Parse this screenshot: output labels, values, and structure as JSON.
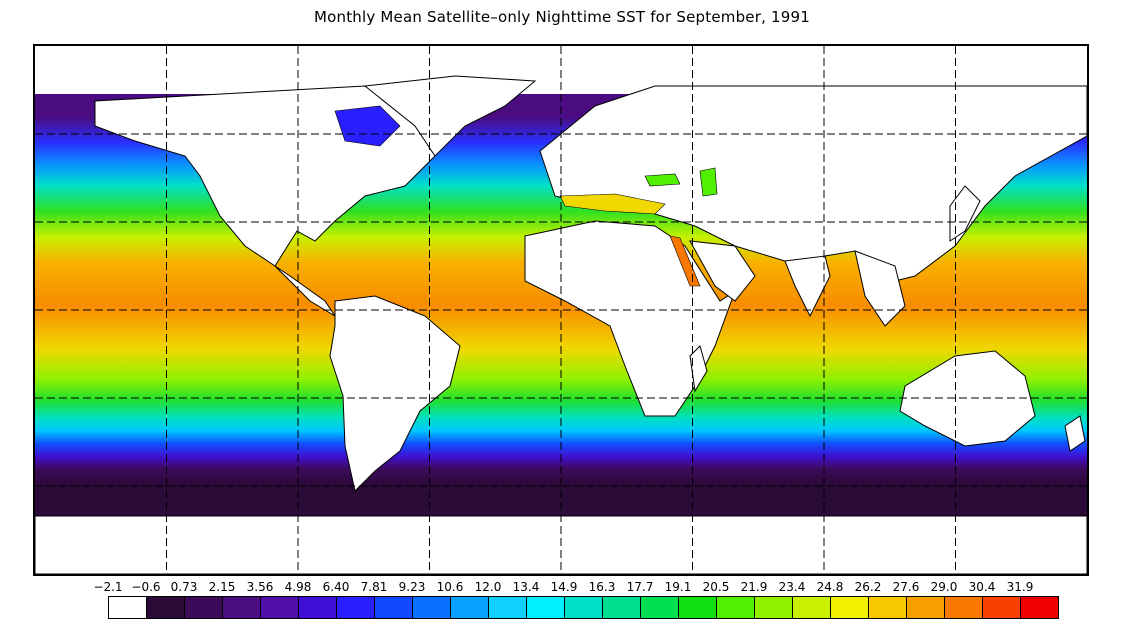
{
  "title": "Monthly Mean Satellite–only Nighttime SST for September, 1991",
  "colorbar": {
    "labels": [
      "−2.1",
      "−0.6",
      "0.73",
      "2.15",
      "3.56",
      "4.98",
      "6.40",
      "7.81",
      "9.23",
      "10.6",
      "12.0",
      "13.4",
      "14.9",
      "16.3",
      "17.7",
      "19.1",
      "20.5",
      "21.9",
      "23.4",
      "24.8",
      "26.2",
      "27.6",
      "29.0",
      "30.4",
      "31.9"
    ],
    "colors": [
      "#ffffff",
      "#2a0a36",
      "#3c0a58",
      "#4a0c80",
      "#5010a8",
      "#4010d8",
      "#2a20ff",
      "#1048ff",
      "#0a70ff",
      "#0aa0ff",
      "#10d0ff",
      "#00f0ff",
      "#00e0c8",
      "#00e090",
      "#00e050",
      "#10e010",
      "#50f000",
      "#90f000",
      "#c8f000",
      "#f0f000",
      "#f8c800",
      "#f8a000",
      "#f87800",
      "#f84000",
      "#f00000"
    ]
  },
  "map": {
    "gridlines": "dashed",
    "land_color": "#ffffff",
    "coastline_color": "#000000"
  }
}
